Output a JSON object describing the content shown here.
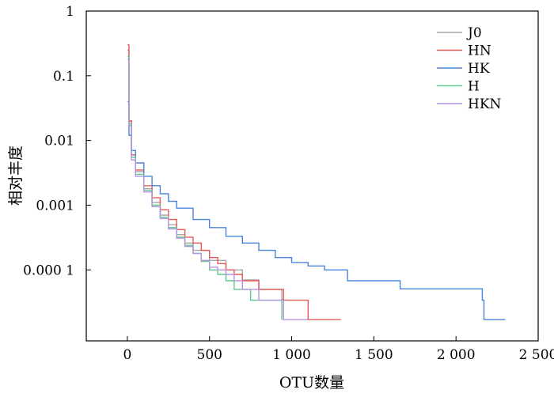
{
  "chart_data": {
    "type": "line",
    "title": "",
    "xlabel": "OTU数量",
    "ylabel": "相对丰度",
    "xscale": "linear",
    "yscale": "log",
    "xlim": [
      -250,
      2500
    ],
    "ylim": [
      8e-06,
      1
    ],
    "grid": false,
    "legend_position": "top-right",
    "x_ticks": [
      0,
      500,
      1000,
      1500,
      2000,
      2500
    ],
    "x_tick_labels": [
      "0",
      "500",
      "1 000",
      "1 500",
      "2 000",
      "2 500"
    ],
    "y_ticks": [
      1,
      0.1,
      0.01,
      0.001,
      0.0001
    ],
    "y_tick_labels": [
      "1",
      "0.1",
      "0.01",
      "0.001",
      "0.000 1"
    ],
    "series": [
      {
        "name": "J0",
        "color": "#a6a6a6",
        "x": [
          1,
          10,
          25,
          50,
          100,
          150,
          200,
          250,
          300,
          350,
          400,
          500,
          600,
          700,
          800,
          940,
          950
        ],
        "y": [
          0.25,
          0.02,
          0.006,
          0.0033,
          0.0018,
          0.0011,
          0.0007,
          0.0005,
          0.00035,
          0.00026,
          0.0002,
          0.00014,
          0.0001,
          7e-05,
          5e-05,
          3.5e-05,
          1.7e-05
        ]
      },
      {
        "name": "HN",
        "color": "#e8595a",
        "x": [
          1,
          10,
          25,
          50,
          100,
          150,
          200,
          250,
          300,
          350,
          400,
          450,
          500,
          550,
          600,
          650,
          700,
          800,
          950,
          1080,
          1100,
          1300
        ],
        "y": [
          0.3,
          0.02,
          0.006,
          0.0035,
          0.002,
          0.0013,
          0.00085,
          0.0006,
          0.00042,
          0.00032,
          0.00026,
          0.0002,
          0.000155,
          0.000125,
          0.0001,
          8.5e-05,
          6.8e-05,
          5e-05,
          3.4e-05,
          3.4e-05,
          1.7e-05,
          1.7e-05
        ]
      },
      {
        "name": "HK",
        "color": "#4a86d9",
        "x": [
          1,
          10,
          25,
          50,
          100,
          150,
          200,
          250,
          300,
          400,
          500,
          600,
          700,
          800,
          900,
          1000,
          1100,
          1200,
          1340,
          1660,
          2160,
          2170,
          2300
        ],
        "y": [
          0.04,
          0.012,
          0.007,
          0.0045,
          0.0028,
          0.002,
          0.0015,
          0.00115,
          0.0009,
          0.0006,
          0.00045,
          0.00033,
          0.00026,
          0.0002,
          0.000155,
          0.00013,
          0.000115,
          0.0001,
          6.8e-05,
          5.1e-05,
          3.4e-05,
          1.7e-05,
          1.7e-05
        ]
      },
      {
        "name": "H",
        "color": "#5fc98b",
        "x": [
          1,
          10,
          25,
          50,
          100,
          150,
          200,
          250,
          300,
          350,
          400,
          450,
          500,
          550,
          600,
          650,
          750,
          800,
          930,
          940
        ],
        "y": [
          0.2,
          0.018,
          0.0055,
          0.003,
          0.0017,
          0.001,
          0.00065,
          0.00045,
          0.00032,
          0.00024,
          0.00018,
          0.000135,
          0.0001,
          8.5e-05,
          6.8e-05,
          5e-05,
          3.4e-05,
          3.4e-05,
          3.4e-05,
          1.7e-05
        ]
      },
      {
        "name": "HKN",
        "color": "#b592e0",
        "x": [
          1,
          10,
          25,
          50,
          100,
          150,
          200,
          250,
          300,
          350,
          400,
          450,
          500,
          550,
          600,
          650,
          700,
          800,
          950,
          1100
        ],
        "y": [
          0.18,
          0.017,
          0.005,
          0.0028,
          0.0016,
          0.00095,
          0.00062,
          0.00043,
          0.00031,
          0.00023,
          0.00018,
          0.00014,
          0.00011,
          0.0001,
          8.5e-05,
          6.8e-05,
          5e-05,
          3.4e-05,
          1.7e-05,
          1.7e-05
        ]
      }
    ]
  }
}
